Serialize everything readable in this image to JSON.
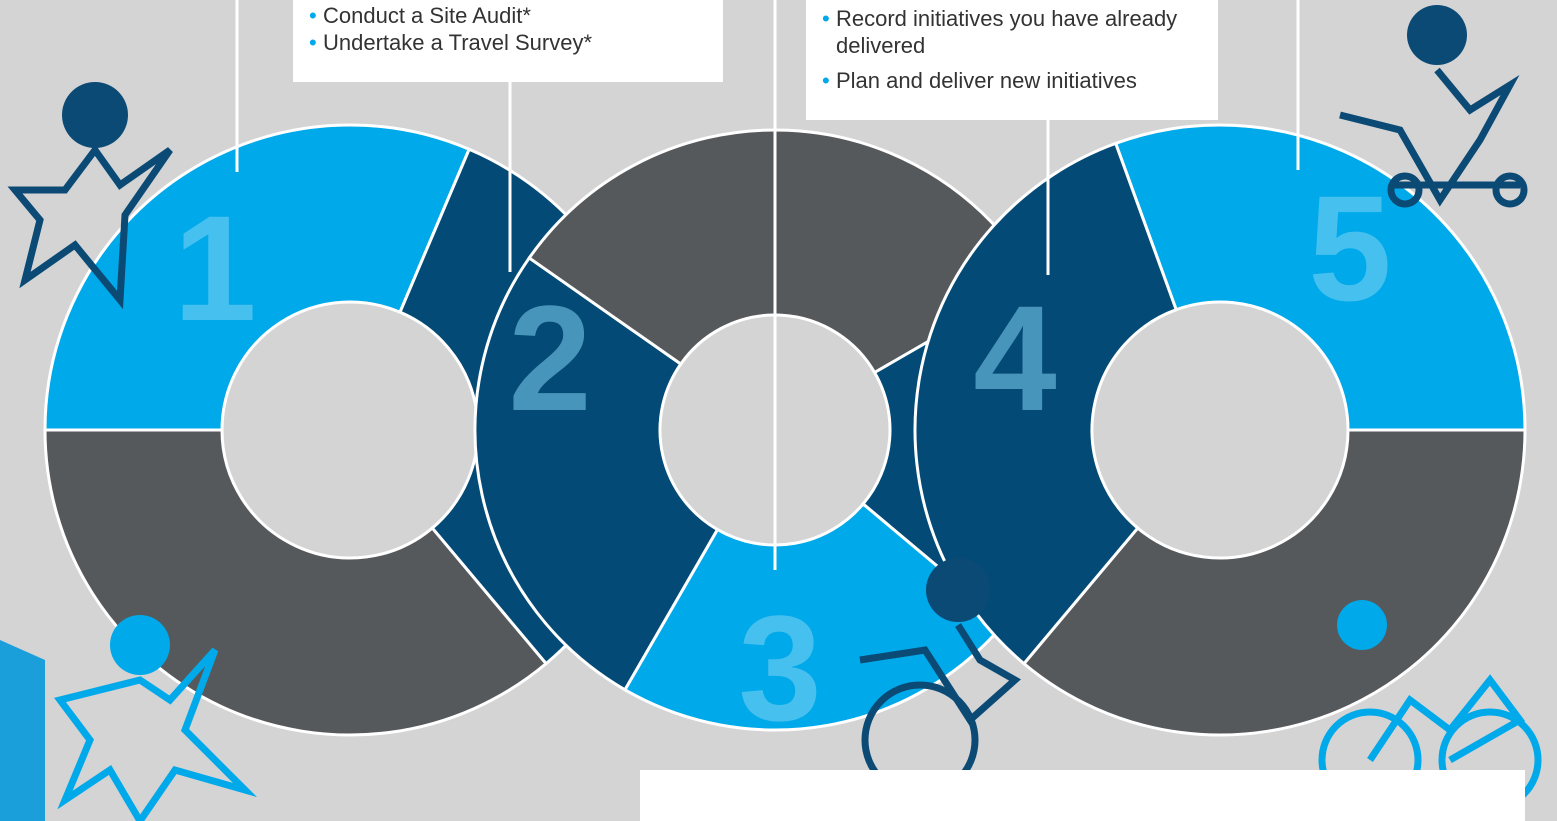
{
  "steps": [
    {
      "number": "1"
    },
    {
      "number": "2",
      "items": [
        "Conduct a Site Audit*",
        "Undertake a Travel Survey*"
      ]
    },
    {
      "number": "3"
    },
    {
      "number": "4",
      "items": [
        "Record initiatives you have already delivered",
        "Plan and deliver new initiatives"
      ]
    },
    {
      "number": "5"
    }
  ]
}
